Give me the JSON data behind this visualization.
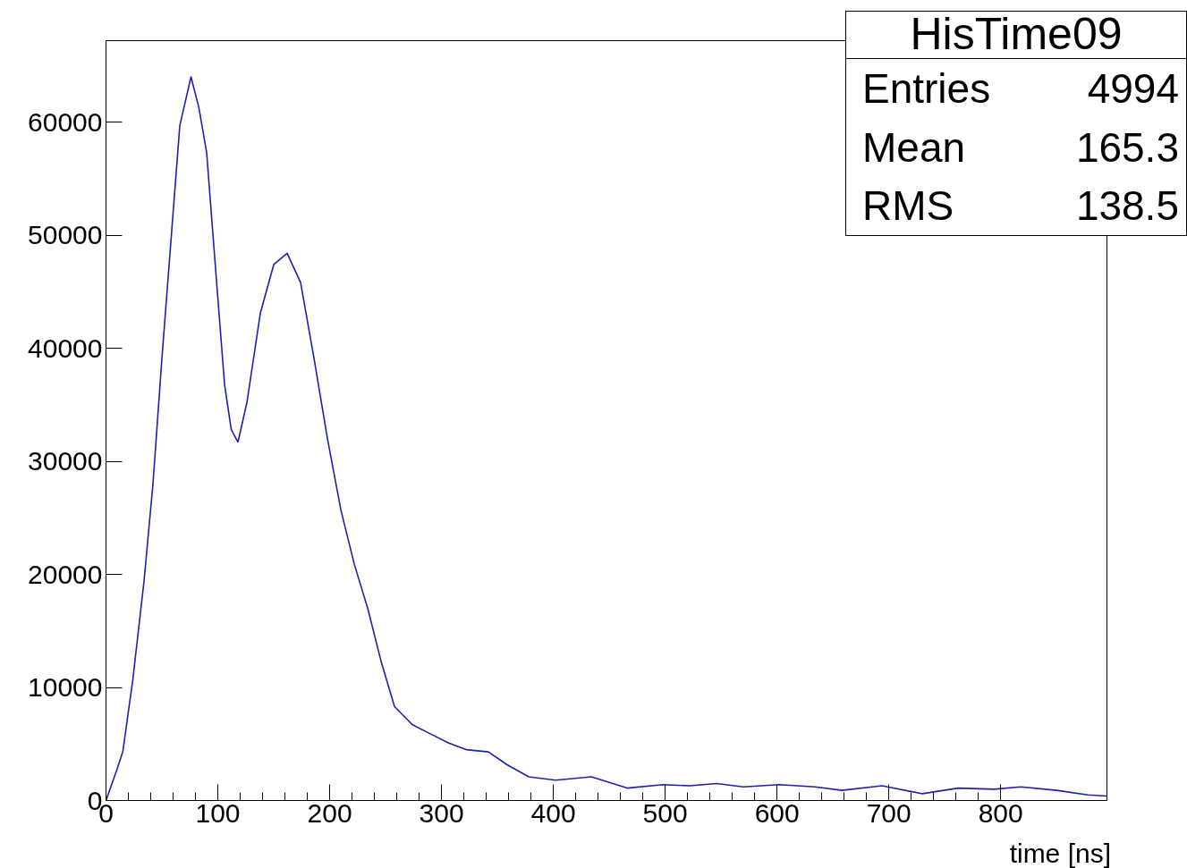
{
  "chart_data": {
    "type": "line",
    "title": "HisTime09",
    "xlabel": "time [ns]",
    "annotations": [
      "Entries 4994",
      "Mean 165.3",
      "RMS 138.5"
    ],
    "x": [
      0,
      10,
      15,
      24,
      34,
      42,
      50,
      58,
      66,
      76,
      83,
      90,
      98,
      106,
      112,
      118,
      126,
      138,
      150,
      162,
      174,
      186,
      198,
      210,
      222,
      234,
      246,
      258,
      274,
      290,
      306,
      322,
      342,
      358,
      378,
      402,
      434,
      466,
      498,
      522,
      546,
      570,
      602,
      634,
      658,
      694,
      730,
      762,
      794,
      818,
      850,
      878,
      895
    ],
    "series": [
      {
        "color": "#2020b0",
        "values": [
          0,
          2800,
          4300,
          10700,
          19400,
          28000,
          39100,
          49400,
          59700,
          64000,
          61300,
          57300,
          47000,
          36800,
          32800,
          31700,
          35200,
          43100,
          47400,
          48400,
          45800,
          39100,
          32000,
          25700,
          20900,
          17000,
          12300,
          8300,
          6700,
          5900,
          5100,
          4500,
          4300,
          3200,
          2100,
          1800,
          2100,
          1100,
          1400,
          1300,
          1500,
          1200,
          1400,
          1200,
          900,
          1300,
          600,
          1100,
          1000,
          1200,
          900,
          500,
          400
        ]
      }
    ],
    "xlim": [
      0,
      895
    ],
    "ylim": [
      0,
      67200
    ],
    "xticks": [
      0,
      100,
      200,
      300,
      400,
      500,
      600,
      700,
      800
    ],
    "yticks": [
      0,
      10000,
      20000,
      30000,
      40000,
      50000,
      60000
    ],
    "grid": false,
    "marker": "none",
    "line_style": "solid"
  }
}
